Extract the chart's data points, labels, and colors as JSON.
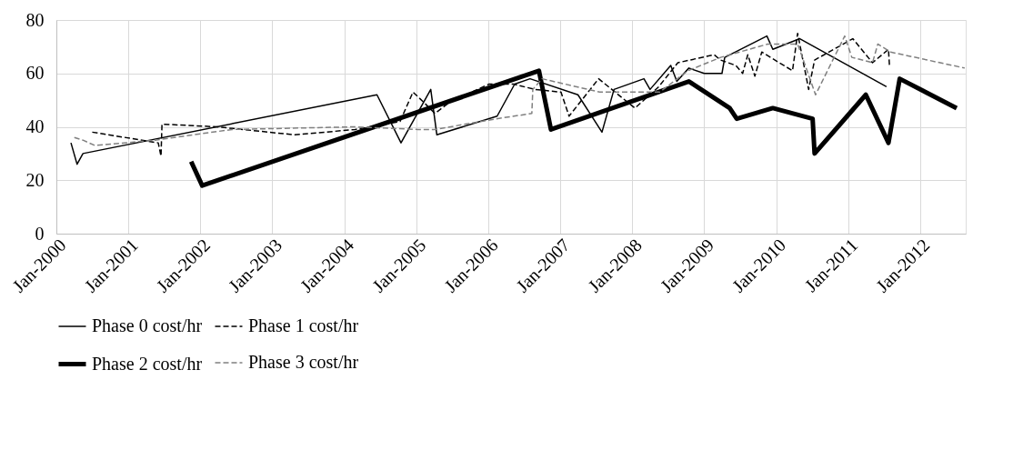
{
  "chart_data": {
    "type": "line",
    "xlim": [
      "2000-01-01",
      "2012-08-20"
    ],
    "xticks": [
      {
        "value": "2000-01-01",
        "label": "Jan-2000"
      },
      {
        "value": "2001-01-01",
        "label": "Jan-2001"
      },
      {
        "value": "2002-01-01",
        "label": "Jan-2002"
      },
      {
        "value": "2003-01-01",
        "label": "Jan-2003"
      },
      {
        "value": "2004-01-01",
        "label": "Jan-2004"
      },
      {
        "value": "2005-01-01",
        "label": "Jan-2005"
      },
      {
        "value": "2006-01-01",
        "label": "Jan-2006"
      },
      {
        "value": "2007-01-01",
        "label": "Jan-2007"
      },
      {
        "value": "2008-01-01",
        "label": "Jan-2008"
      },
      {
        "value": "2009-01-01",
        "label": "Jan-2009"
      },
      {
        "value": "2010-01-01",
        "label": "Jan-2010"
      },
      {
        "value": "2011-01-01",
        "label": "Jan-2011"
      },
      {
        "value": "2012-01-01",
        "label": "Jan-2012"
      }
    ],
    "ylim": [
      0,
      80
    ],
    "yticks": [
      0,
      20,
      40,
      60,
      80
    ],
    "grid": true,
    "legend": "bottom",
    "series": [
      {
        "name": "Phase 0 cost/hr",
        "color": "#000000",
        "line_style": "solid",
        "x": [
          "2000-03-15",
          "2000-04-15",
          "2000-05-15",
          "2004-06-15",
          "2004-10-15",
          "2005-03-15",
          "2005-04-15",
          "2006-02-15",
          "2006-05-15",
          "2006-08-01",
          "2007-04-01",
          "2007-08-01",
          "2007-10-01",
          "2008-03-01",
          "2008-04-01",
          "2008-07-15",
          "2008-08-15",
          "2008-10-15",
          "2009-01-01",
          "2009-04-01",
          "2009-04-15",
          "2009-11-15",
          "2009-12-15",
          "2010-05-01",
          "2011-07-15"
        ],
        "values": [
          34,
          26,
          30,
          52,
          34,
          54,
          37,
          44,
          56,
          58,
          52,
          38,
          54,
          58,
          54,
          63,
          57,
          62,
          60,
          60,
          66,
          74,
          69,
          73,
          55
        ]
      },
      {
        "name": "Phase 1 cost/hr",
        "color": "#000000",
        "line_style": "dashed",
        "x": [
          "2000-07-01",
          "2001-06-01",
          "2001-06-15",
          "2001-06-20",
          "2002-03-25",
          "2003-04-25",
          "2004-02-25",
          "2004-10-10",
          "2004-12-15",
          "2005-02-10",
          "2005-04-05",
          "2005-06-15",
          "2006-01-05",
          "2006-05-10",
          "2006-08-25",
          "2007-01-05",
          "2007-02-15",
          "2007-07-15",
          "2008-01-15",
          "2008-05-15",
          "2008-08-20",
          "2009-02-20",
          "2009-03-25",
          "2009-06-10",
          "2009-07-15",
          "2009-08-10",
          "2009-09-15",
          "2009-10-20",
          "2010-03-25",
          "2010-04-20",
          "2010-06-15",
          "2010-07-15",
          "2011-01-25",
          "2011-05-05",
          "2011-07-25",
          "2011-07-30"
        ],
        "values": [
          38,
          34,
          29,
          41,
          40,
          37,
          39,
          42,
          53,
          49,
          45,
          49,
          56,
          56,
          54,
          53,
          44,
          58,
          47,
          55,
          64,
          67,
          65,
          63,
          60,
          67,
          59,
          68,
          61,
          75,
          54,
          65,
          73,
          64,
          69,
          63
        ]
      },
      {
        "name": "Phase 2 cost/hr",
        "color": "#000000",
        "line_style": "solid",
        "x": [
          "2001-11-15",
          "2002-01-10",
          "2006-09-15",
          "2006-11-15",
          "2008-10-15",
          "2009-05-10",
          "2009-06-15",
          "2009-12-15",
          "2010-07-05",
          "2010-07-15",
          "2011-04-01",
          "2011-07-25",
          "2011-09-20",
          "2012-07-05"
        ],
        "values": [
          27,
          18,
          61,
          39,
          57,
          47,
          43,
          47,
          43,
          30,
          52,
          34,
          58,
          47
        ]
      },
      {
        "name": "Phase 3 cost/hr",
        "color": "#808080",
        "line_style": "dashed",
        "x": [
          "2000-04-01",
          "2000-05-15",
          "2000-07-15",
          "2001-05-15",
          "2002-06-10",
          "2004-02-25",
          "2005-01-10",
          "2005-04-05",
          "2006-02-10",
          "2006-08-10",
          "2006-08-15",
          "2006-10-01",
          "2007-07-20",
          "2008-05-20",
          "2008-10-10",
          "2009-03-25",
          "2009-11-20",
          "2010-04-20",
          "2010-07-20",
          "2010-12-15",
          "2011-01-20",
          "2011-05-05",
          "2011-06-01",
          "2011-08-05",
          "2012-08-15"
        ],
        "values": [
          36,
          35,
          33,
          35,
          39,
          40,
          39,
          39,
          43,
          45,
          54,
          58,
          53,
          53,
          61,
          66,
          71,
          71,
          52,
          74,
          66,
          64,
          71,
          68,
          62
        ]
      }
    ]
  }
}
